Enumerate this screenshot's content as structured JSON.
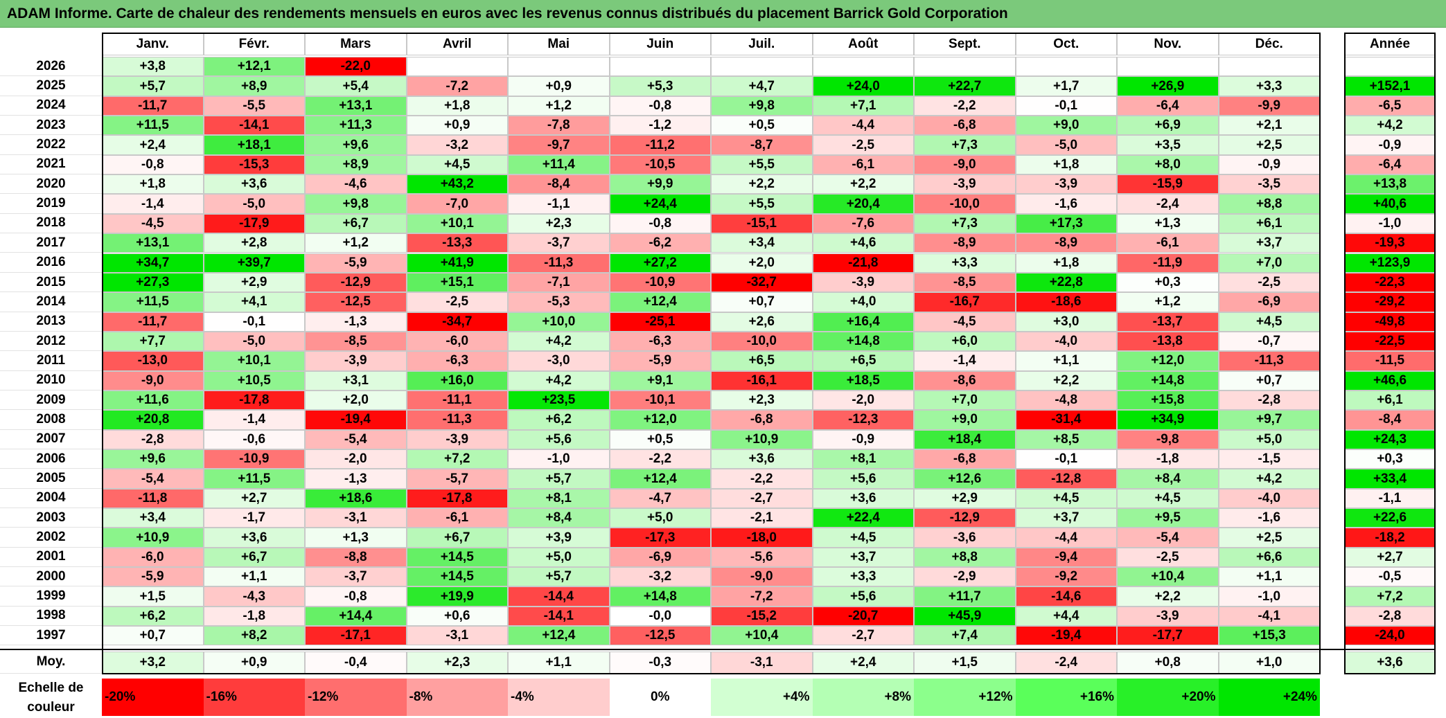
{
  "title": "ADAM Informe. Carte de chaleur des rendements mensuels en euros avec les revenus connus distribués du placement Barrick Gold Corporation",
  "chart_data": {
    "type": "heatmap",
    "columns": [
      "Janv.",
      "Févr.",
      "Mars",
      "Avril",
      "Mai",
      "Juin",
      "Juil.",
      "Août",
      "Sept.",
      "Oct.",
      "Nov.",
      "Déc."
    ],
    "year_column": "Année",
    "rows": [
      {
        "year": "2026",
        "values": [
          "+3,8",
          "+12,1",
          "-22,0",
          "",
          "",
          "",
          "",
          "",
          "",
          "",
          "",
          ""
        ],
        "annual": ""
      },
      {
        "year": "2025",
        "values": [
          "+5,7",
          "+8,9",
          "+5,4",
          "-7,2",
          "+0,9",
          "+5,3",
          "+4,7",
          "+24,0",
          "+22,7",
          "+1,7",
          "+26,9",
          "+3,3"
        ],
        "annual": "+152,1"
      },
      {
        "year": "2024",
        "values": [
          "-11,7",
          "-5,5",
          "+13,1",
          "+1,8",
          "+1,2",
          "-0,8",
          "+9,8",
          "+7,1",
          "-2,2",
          "-0,1",
          "-6,4",
          "-9,9"
        ],
        "annual": "-6,5"
      },
      {
        "year": "2023",
        "values": [
          "+11,5",
          "-14,1",
          "+11,3",
          "+0,9",
          "-7,8",
          "-1,2",
          "+0,5",
          "-4,4",
          "-6,8",
          "+9,0",
          "+6,9",
          "+2,1"
        ],
        "annual": "+4,2"
      },
      {
        "year": "2022",
        "values": [
          "+2,4",
          "+18,1",
          "+9,6",
          "-3,2",
          "-9,7",
          "-11,2",
          "-8,7",
          "-2,5",
          "+7,3",
          "-5,0",
          "+3,5",
          "+2,5"
        ],
        "annual": "-0,9"
      },
      {
        "year": "2021",
        "values": [
          "-0,8",
          "-15,3",
          "+8,9",
          "+4,5",
          "+11,4",
          "-10,5",
          "+5,5",
          "-6,1",
          "-9,0",
          "+1,8",
          "+8,0",
          "-0,9"
        ],
        "annual": "-6,4"
      },
      {
        "year": "2020",
        "values": [
          "+1,8",
          "+3,6",
          "-4,6",
          "+43,2",
          "-8,4",
          "+9,9",
          "+2,2",
          "+2,2",
          "-3,9",
          "-3,9",
          "-15,9",
          "-3,5"
        ],
        "annual": "+13,8"
      },
      {
        "year": "2019",
        "values": [
          "-1,4",
          "-5,0",
          "+9,8",
          "-7,0",
          "-1,1",
          "+24,4",
          "+5,5",
          "+20,4",
          "-10,0",
          "-1,6",
          "-2,4",
          "+8,8"
        ],
        "annual": "+40,6"
      },
      {
        "year": "2018",
        "values": [
          "-4,5",
          "-17,9",
          "+6,7",
          "+10,1",
          "+2,3",
          "-0,8",
          "-15,1",
          "-7,6",
          "+7,3",
          "+17,3",
          "+1,3",
          "+6,1"
        ],
        "annual": "-1,0"
      },
      {
        "year": "2017",
        "values": [
          "+13,1",
          "+2,8",
          "+1,2",
          "-13,3",
          "-3,7",
          "-6,2",
          "+3,4",
          "+4,6",
          "-8,9",
          "-8,9",
          "-6,1",
          "+3,7"
        ],
        "annual": "-19,3"
      },
      {
        "year": "2016",
        "values": [
          "+34,7",
          "+39,7",
          "-5,9",
          "+41,9",
          "-11,3",
          "+27,2",
          "+2,0",
          "-21,8",
          "+3,3",
          "+1,8",
          "-11,9",
          "+7,0"
        ],
        "annual": "+123,9"
      },
      {
        "year": "2015",
        "values": [
          "+27,3",
          "+2,9",
          "-12,9",
          "+15,1",
          "-7,1",
          "-10,9",
          "-32,7",
          "-3,9",
          "-8,5",
          "+22,8",
          "+0,3",
          "-2,5"
        ],
        "annual": "-22,3"
      },
      {
        "year": "2014",
        "values": [
          "+11,5",
          "+4,1",
          "-12,5",
          "-2,5",
          "-5,3",
          "+12,4",
          "+0,7",
          "+4,0",
          "-16,7",
          "-18,6",
          "+1,2",
          "-6,9"
        ],
        "annual": "-29,2"
      },
      {
        "year": "2013",
        "values": [
          "-11,7",
          "-0,1",
          "-1,3",
          "-34,7",
          "+10,0",
          "-25,1",
          "+2,6",
          "+16,4",
          "-4,5",
          "+3,0",
          "-13,7",
          "+4,5"
        ],
        "annual": "-49,8"
      },
      {
        "year": "2012",
        "values": [
          "+7,7",
          "-5,0",
          "-8,5",
          "-6,0",
          "+4,2",
          "-6,3",
          "-10,0",
          "+14,8",
          "+6,0",
          "-4,0",
          "-13,8",
          "-0,7"
        ],
        "annual": "-22,5"
      },
      {
        "year": "2011",
        "values": [
          "-13,0",
          "+10,1",
          "-3,9",
          "-6,3",
          "-3,0",
          "-5,9",
          "+6,5",
          "+6,5",
          "-1,4",
          "+1,1",
          "+12,0",
          "-11,3"
        ],
        "annual": "-11,5"
      },
      {
        "year": "2010",
        "values": [
          "-9,0",
          "+10,5",
          "+3,1",
          "+16,0",
          "+4,2",
          "+9,1",
          "-16,1",
          "+18,5",
          "-8,6",
          "+2,2",
          "+14,8",
          "+0,7"
        ],
        "annual": "+46,6"
      },
      {
        "year": "2009",
        "values": [
          "+11,6",
          "-17,8",
          "+2,0",
          "-11,1",
          "+23,5",
          "-10,1",
          "+2,3",
          "-2,0",
          "+7,0",
          "-4,8",
          "+15,8",
          "-2,8"
        ],
        "annual": "+6,1"
      },
      {
        "year": "2008",
        "values": [
          "+20,8",
          "-1,4",
          "-19,4",
          "-11,3",
          "+6,2",
          "+12,0",
          "-6,8",
          "-12,3",
          "+9,0",
          "-31,4",
          "+34,9",
          "+9,7"
        ],
        "annual": "-8,4"
      },
      {
        "year": "2007",
        "values": [
          "-2,8",
          "-0,6",
          "-5,4",
          "-3,9",
          "+5,6",
          "+0,5",
          "+10,9",
          "-0,9",
          "+18,4",
          "+8,5",
          "-9,8",
          "+5,0"
        ],
        "annual": "+24,3"
      },
      {
        "year": "2006",
        "values": [
          "+9,6",
          "-10,9",
          "-2,0",
          "+7,2",
          "-1,0",
          "-2,2",
          "+3,6",
          "+8,1",
          "-6,8",
          "-0,1",
          "-1,8",
          "-1,5"
        ],
        "annual": "+0,3"
      },
      {
        "year": "2005",
        "values": [
          "-5,4",
          "+11,5",
          "-1,3",
          "-5,7",
          "+5,7",
          "+12,4",
          "-2,2",
          "+5,6",
          "+12,6",
          "-12,8",
          "+8,4",
          "+4,2"
        ],
        "annual": "+33,4"
      },
      {
        "year": "2004",
        "values": [
          "-11,8",
          "+2,7",
          "+18,6",
          "-17,8",
          "+8,1",
          "-4,7",
          "-2,7",
          "+3,6",
          "+2,9",
          "+4,5",
          "+4,5",
          "-4,0"
        ],
        "annual": "-1,1"
      },
      {
        "year": "2003",
        "values": [
          "+3,4",
          "-1,7",
          "-3,1",
          "-6,1",
          "+8,4",
          "+5,0",
          "-2,1",
          "+22,4",
          "-12,9",
          "+3,7",
          "+9,5",
          "-1,6"
        ],
        "annual": "+22,6"
      },
      {
        "year": "2002",
        "values": [
          "+10,9",
          "+3,6",
          "+1,3",
          "+6,7",
          "+3,9",
          "-17,3",
          "-18,0",
          "+4,5",
          "-3,6",
          "-4,4",
          "-5,4",
          "+2,5"
        ],
        "annual": "-18,2"
      },
      {
        "year": "2001",
        "values": [
          "-6,0",
          "+6,7",
          "-8,8",
          "+14,5",
          "+5,0",
          "-6,9",
          "-5,6",
          "+3,7",
          "+8,8",
          "-9,4",
          "-2,5",
          "+6,6"
        ],
        "annual": "+2,7"
      },
      {
        "year": "2000",
        "values": [
          "-5,9",
          "+1,1",
          "-3,7",
          "+14,5",
          "+5,7",
          "-3,2",
          "-9,0",
          "+3,3",
          "-2,9",
          "-9,2",
          "+10,4",
          "+1,1"
        ],
        "annual": "-0,5"
      },
      {
        "year": "1999",
        "values": [
          "+1,5",
          "-4,3",
          "-0,8",
          "+19,9",
          "-14,4",
          "+14,8",
          "-7,2",
          "+5,6",
          "+11,7",
          "-14,6",
          "+2,2",
          "-1,0"
        ],
        "annual": "+7,2"
      },
      {
        "year": "1998",
        "values": [
          "+6,2",
          "-1,8",
          "+14,4",
          "+0,6",
          "-14,1",
          "-0,0",
          "-15,2",
          "-20,7",
          "+45,9",
          "+4,4",
          "-3,9",
          "-4,1"
        ],
        "annual": "-2,8"
      },
      {
        "year": "1997",
        "values": [
          "+0,7",
          "+8,2",
          "-17,1",
          "-3,1",
          "+12,4",
          "-12,5",
          "+10,4",
          "-2,7",
          "+7,4",
          "-19,4",
          "-17,7",
          "+15,3"
        ],
        "annual": "-24,0"
      }
    ],
    "average": {
      "label": "Moy.",
      "values": [
        "+3,2",
        "+0,9",
        "-0,4",
        "+2,3",
        "+1,1",
        "-0,3",
        "-3,1",
        "+2,4",
        "+1,5",
        "-2,4",
        "+0,8",
        "+1,0"
      ],
      "annual": "+3,6"
    },
    "color_scale": {
      "label_line1": "Echelle de",
      "label_line2": "couleur",
      "stops": [
        "-20%",
        "-16%",
        "-12%",
        "-8%",
        "-4%",
        "0%",
        "+4%",
        "+8%",
        "+12%",
        "+16%",
        "+20%",
        "+24%"
      ],
      "stop_values": [
        -20,
        -16,
        -12,
        -8,
        -4,
        0,
        4,
        8,
        12,
        16,
        20,
        24
      ],
      "colors": [
        "#ff0000",
        "#ff3c3c",
        "#ff6e6e",
        "#ffa0a0",
        "#ffcdcd",
        "#ffffff",
        "#d2ffd2",
        "#b4ffb4",
        "#8cff8c",
        "#5aff5a",
        "#28f028",
        "#00e600"
      ]
    }
  }
}
